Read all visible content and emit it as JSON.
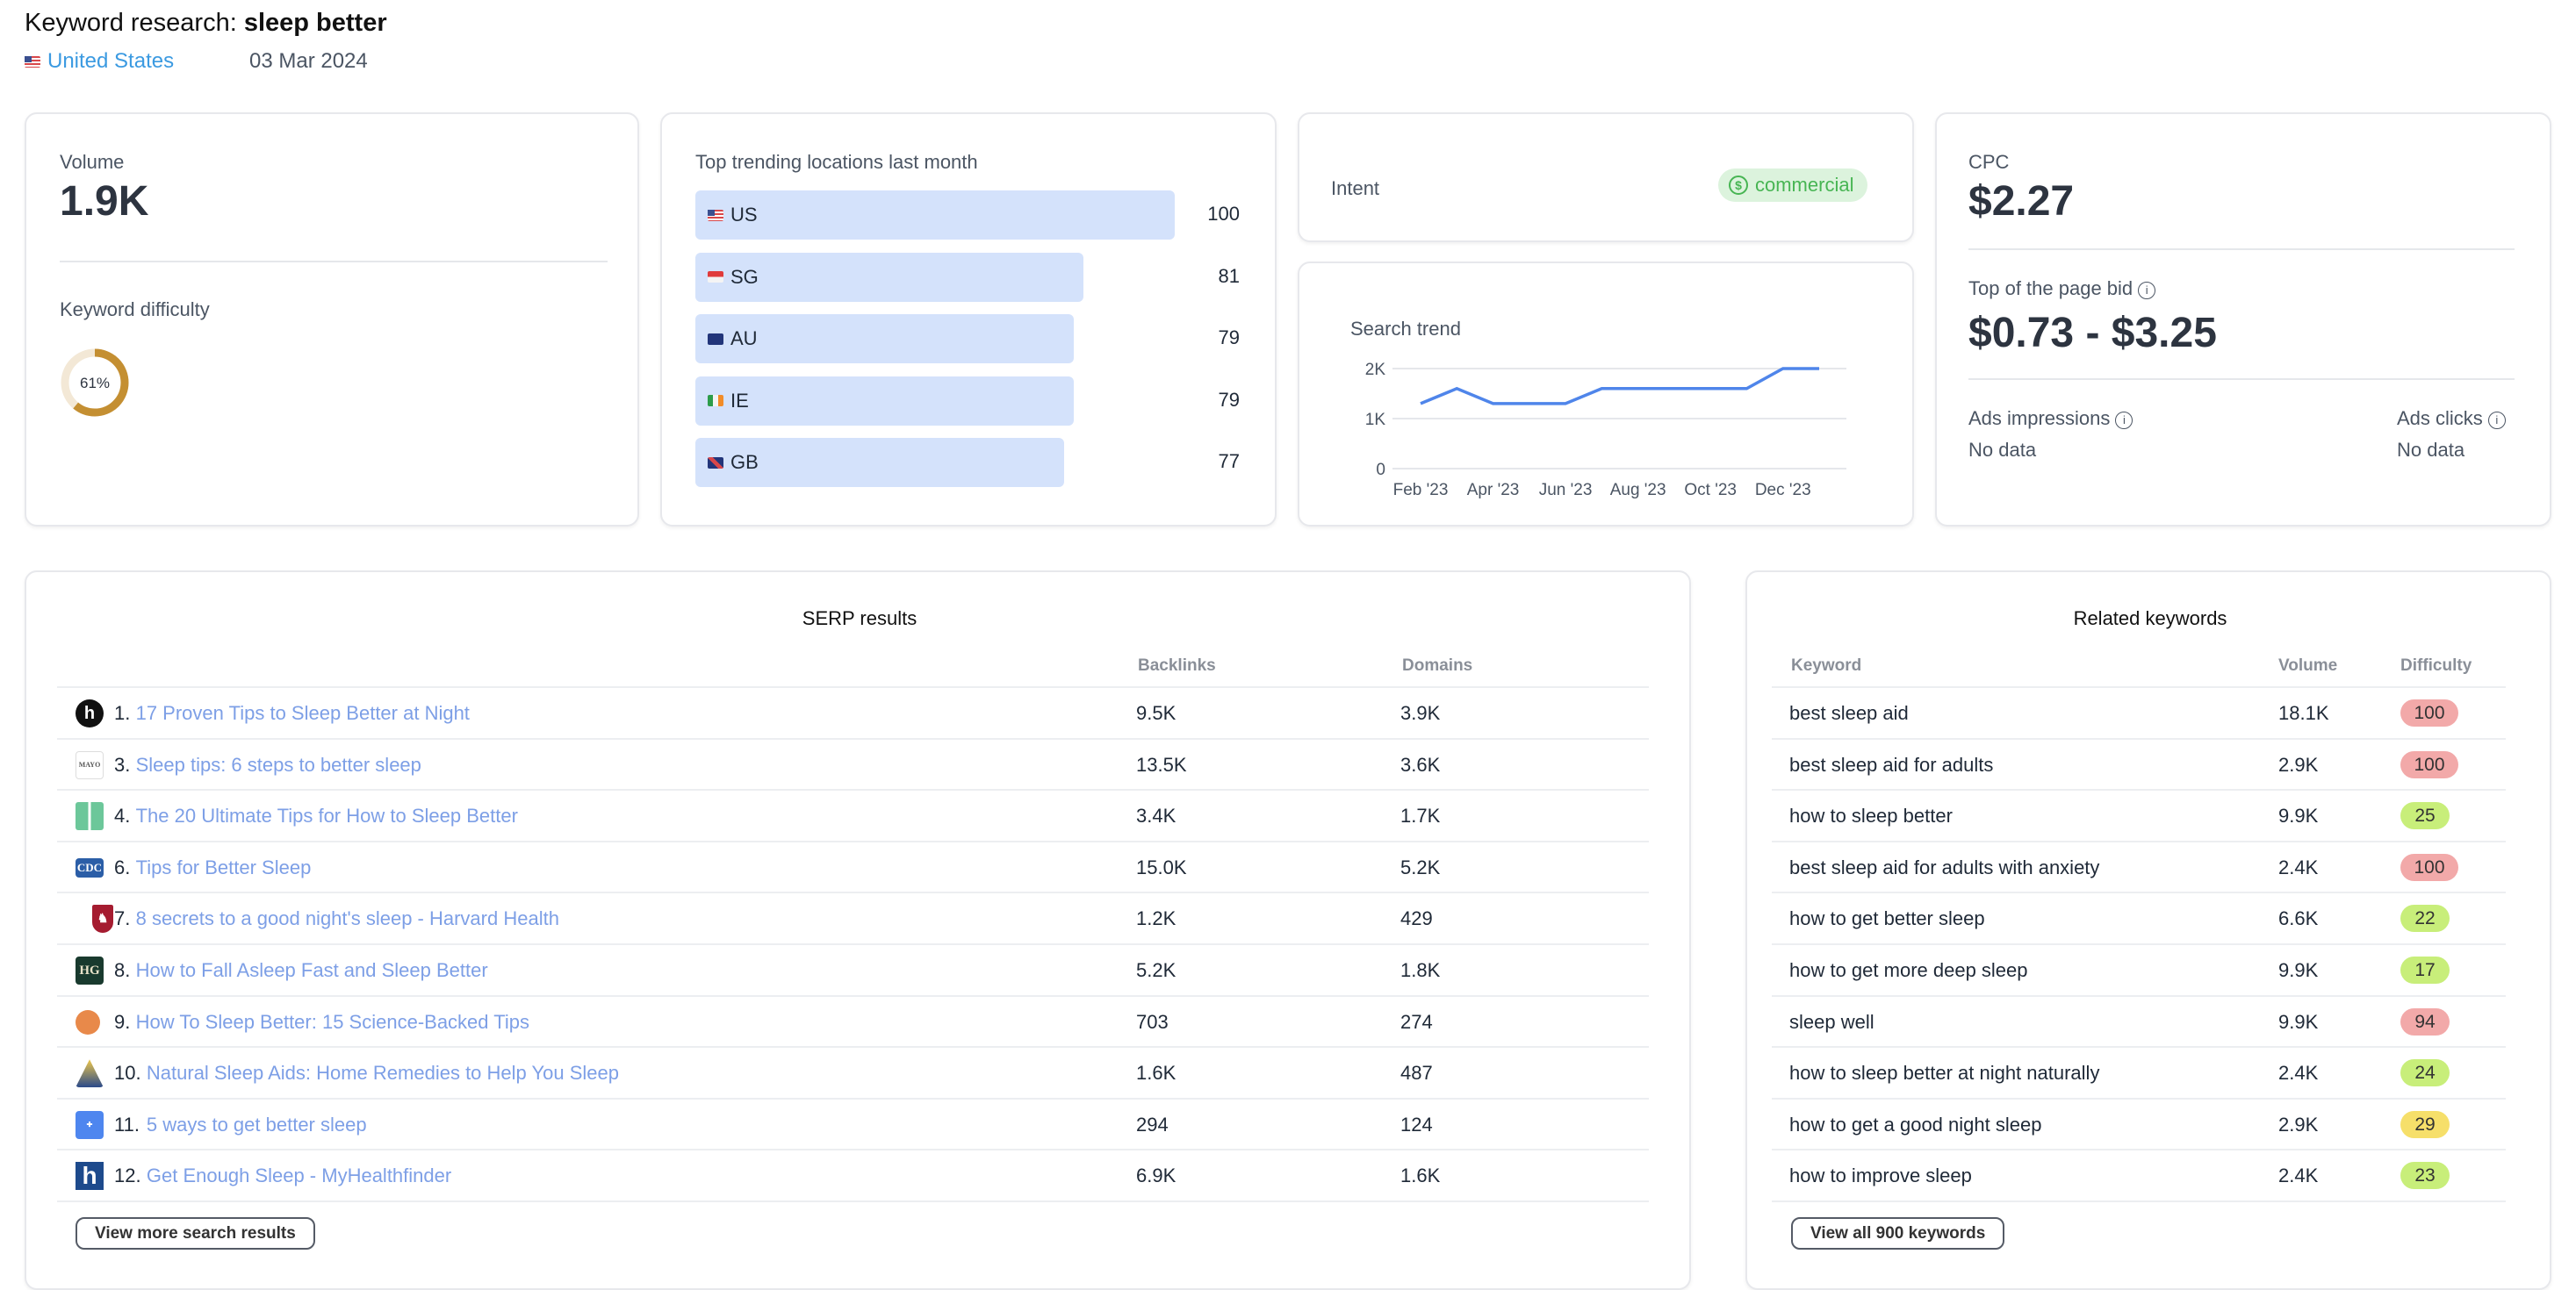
{
  "header": {
    "title_prefix": "Keyword research: ",
    "keyword": "sleep better",
    "country": "United States",
    "date": "03 Mar 2024"
  },
  "volume": {
    "label": "Volume",
    "value": "1.9K"
  },
  "difficulty": {
    "label": "Keyword difficulty",
    "value": 61,
    "display": "61%",
    "color": "#c48f32"
  },
  "locations": {
    "title": "Top trending locations last month",
    "items": [
      {
        "code": "US",
        "flag": "f-us",
        "value": 100
      },
      {
        "code": "SG",
        "flag": "f-sg",
        "value": 81
      },
      {
        "code": "AU",
        "flag": "f-au",
        "value": 79
      },
      {
        "code": "IE",
        "flag": "f-ie",
        "value": 79
      },
      {
        "code": "GB",
        "flag": "f-gb",
        "value": 77
      }
    ]
  },
  "intent": {
    "label": "Intent",
    "value": "commercial",
    "icon": "dollar-circle-icon"
  },
  "trend": {
    "label": "Search trend"
  },
  "chart_data": {
    "type": "line",
    "x": [
      "Feb '23",
      "Mar '23",
      "Apr '23",
      "May '23",
      "Jun '23",
      "Jul '23",
      "Aug '23",
      "Sep '23",
      "Oct '23",
      "Nov '23",
      "Dec '23",
      "Jan '24"
    ],
    "values": [
      1300,
      1600,
      1300,
      1300,
      1300,
      1600,
      1600,
      1600,
      1600,
      1600,
      2000,
      2000
    ],
    "xticks": [
      "Feb '23",
      "Apr '23",
      "Jun '23",
      "Aug '23",
      "Oct '23",
      "Dec '23"
    ],
    "yticks": [
      {
        "v": 0,
        "label": "0"
      },
      {
        "v": 1000,
        "label": "1K"
      },
      {
        "v": 2000,
        "label": "2K"
      }
    ],
    "ylim": [
      0,
      2000
    ],
    "grid": true,
    "color": "#4f85ea"
  },
  "cpc": {
    "label": "CPC",
    "value": "$2.27",
    "bid_label": "Top of the page bid",
    "bid_value": "$0.73 - $3.25",
    "impressions_label": "Ads impressions",
    "impressions_value": "No data",
    "clicks_label": "Ads clicks",
    "clicks_value": "No data"
  },
  "serp": {
    "title": "SERP results",
    "col_backlinks": "Backlinks",
    "col_domains": "Domains",
    "button": "View more search results",
    "rows": [
      {
        "rank": "1.",
        "title": "17 Proven Tips to Sleep Better at Night",
        "backlinks": "9.5K",
        "domains": "3.9K",
        "icon": "h-circle"
      },
      {
        "rank": "3.",
        "title": "Sleep tips: 6 steps to better sleep",
        "backlinks": "13.5K",
        "domains": "3.6K",
        "icon": "mayo"
      },
      {
        "rank": "4.",
        "title": "The 20 Ultimate Tips for How to Sleep Better",
        "backlinks": "3.4K",
        "domains": "1.7K",
        "icon": "blocks"
      },
      {
        "rank": "6.",
        "title": "Tips for Better Sleep",
        "backlinks": "15.0K",
        "domains": "5.2K",
        "icon": "cdc"
      },
      {
        "rank": "7.",
        "title": "8 secrets to a good night's sleep - Harvard Health",
        "backlinks": "1.2K",
        "domains": "429",
        "icon": "harvard"
      },
      {
        "rank": "8.",
        "title": "How to Fall Asleep Fast and Sleep Better",
        "backlinks": "5.2K",
        "domains": "1.8K",
        "icon": "hg"
      },
      {
        "rank": "9.",
        "title": "How To Sleep Better: 15 Science-Backed Tips",
        "backlinks": "703",
        "domains": "274",
        "icon": "orange-circle"
      },
      {
        "rank": "10.",
        "title": "Natural Sleep Aids: Home Remedies to Help You Sleep",
        "backlinks": "1.6K",
        "domains": "487",
        "icon": "hopkins"
      },
      {
        "rank": "11.",
        "title": "5 ways to get better sleep",
        "backlinks": "294",
        "domains": "124",
        "icon": "mayo-blue"
      },
      {
        "rank": "12.",
        "title": "Get Enough Sleep - MyHealthfinder",
        "backlinks": "6.9K",
        "domains": "1.6K",
        "icon": "h-square"
      }
    ]
  },
  "related": {
    "title": "Related keywords",
    "col_keyword": "Keyword",
    "col_volume": "Volume",
    "col_difficulty": "Difficulty",
    "button": "View all 900 keywords",
    "rows": [
      {
        "keyword": "best sleep aid",
        "volume": "18.1K",
        "difficulty": "100"
      },
      {
        "keyword": "best sleep aid for adults",
        "volume": "2.9K",
        "difficulty": "100"
      },
      {
        "keyword": "how to sleep better",
        "volume": "9.9K",
        "difficulty": "25"
      },
      {
        "keyword": "best sleep aid for adults with anxiety",
        "volume": "2.4K",
        "difficulty": "100"
      },
      {
        "keyword": "how to get better sleep",
        "volume": "6.6K",
        "difficulty": "22"
      },
      {
        "keyword": "how to get more deep sleep",
        "volume": "9.9K",
        "difficulty": "17"
      },
      {
        "keyword": "sleep well",
        "volume": "9.9K",
        "difficulty": "94"
      },
      {
        "keyword": "how to sleep better at night naturally",
        "volume": "2.4K",
        "difficulty": "24"
      },
      {
        "keyword": "how to get a good night sleep",
        "volume": "2.9K",
        "difficulty": "29"
      },
      {
        "keyword": "how to improve sleep",
        "volume": "2.4K",
        "difficulty": "23"
      }
    ]
  },
  "colors": {
    "hard": "#f2a9a9",
    "easy": "#c8ee7a",
    "medium": "#f6df6a",
    "link": "#7d9fe6"
  }
}
